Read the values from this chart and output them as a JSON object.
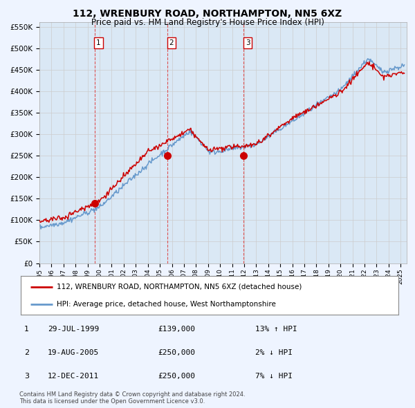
{
  "title": "112, WRENBURY ROAD, NORTHAMPTON, NN5 6XZ",
  "subtitle": "Price paid vs. HM Land Registry's House Price Index (HPI)",
  "ylim": [
    0,
    560000
  ],
  "yticks": [
    0,
    50000,
    100000,
    150000,
    200000,
    250000,
    300000,
    350000,
    400000,
    450000,
    500000,
    550000
  ],
  "ytick_labels": [
    "£0",
    "£50K",
    "£100K",
    "£150K",
    "£200K",
    "£250K",
    "£300K",
    "£350K",
    "£400K",
    "£450K",
    "£500K",
    "£550K"
  ],
  "sale_dates_num": [
    1999.57,
    2005.63,
    2011.95
  ],
  "sale_prices": [
    139000,
    250000,
    250000
  ],
  "sale_labels": [
    "1",
    "2",
    "3"
  ],
  "hpi_color": "#6699CC",
  "price_color": "#CC0000",
  "sale_dot_color": "#CC0000",
  "sale_line_color": "#DD4444",
  "grid_color": "#CCCCCC",
  "background_color": "#EEF4FF",
  "plot_bg_color": "#DAE8F5",
  "legend_line1": "112, WRENBURY ROAD, NORTHAMPTON, NN5 6XZ (detached house)",
  "legend_line2": "HPI: Average price, detached house, West Northamptonshire",
  "table_rows": [
    [
      "1",
      "29-JUL-1999",
      "£139,000",
      "13% ↑ HPI"
    ],
    [
      "2",
      "19-AUG-2005",
      "£250,000",
      "2% ↓ HPI"
    ],
    [
      "3",
      "12-DEC-2011",
      "£250,000",
      "7% ↓ HPI"
    ]
  ],
  "footer": "Contains HM Land Registry data © Crown copyright and database right 2024.\nThis data is licensed under the Open Government Licence v3.0.",
  "xmin": 1995.0,
  "xmax": 2025.5,
  "xticks": [
    1995,
    1996,
    1997,
    1998,
    1999,
    2000,
    2001,
    2002,
    2003,
    2004,
    2005,
    2006,
    2007,
    2008,
    2009,
    2010,
    2011,
    2012,
    2013,
    2014,
    2015,
    2016,
    2017,
    2018,
    2019,
    2020,
    2021,
    2022,
    2023,
    2024,
    2025
  ]
}
